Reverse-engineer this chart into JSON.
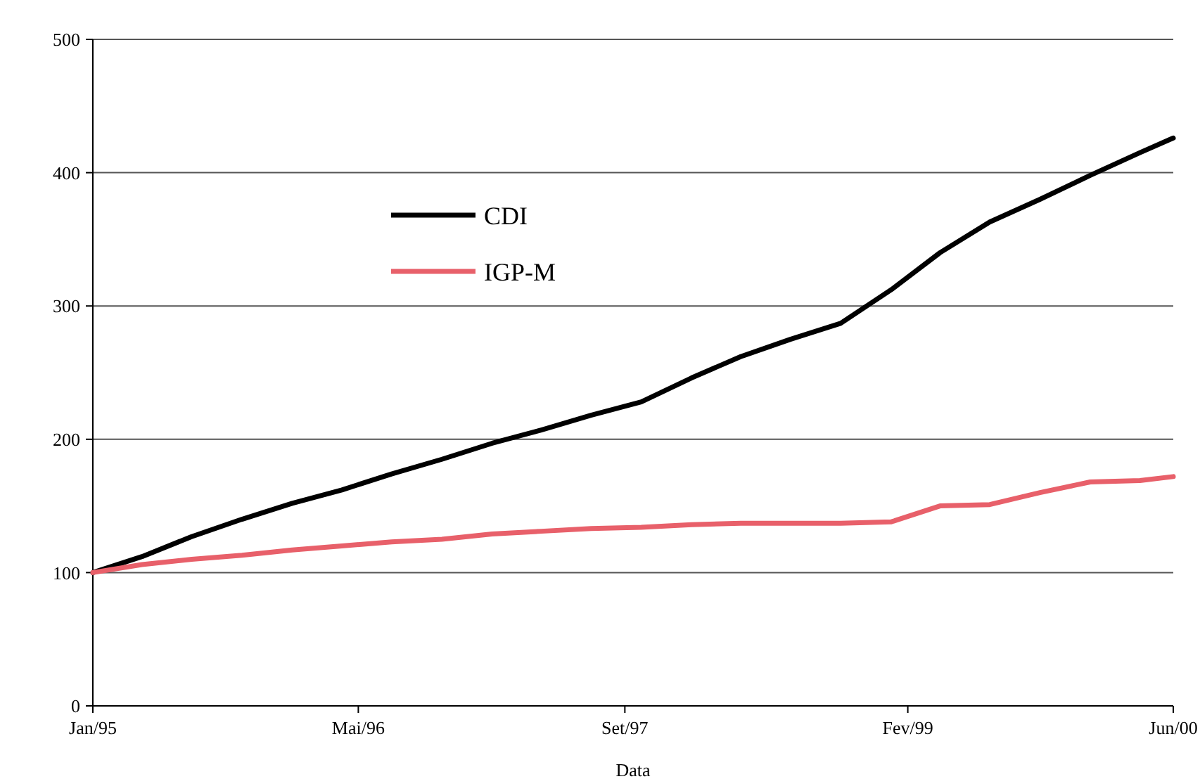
{
  "chart_data": {
    "type": "line",
    "xlabel": "Data",
    "x": [
      "1995-01",
      "1995-04",
      "1995-07",
      "1995-10",
      "1996-01",
      "1996-04",
      "1996-07",
      "1996-10",
      "1997-01",
      "1997-04",
      "1997-07",
      "1997-10",
      "1998-01",
      "1998-04",
      "1998-07",
      "1998-10",
      "1999-01",
      "1999-04",
      "1999-07",
      "1999-10",
      "2000-01",
      "2000-04",
      "2000-06"
    ],
    "series": [
      {
        "name": "CDI",
        "color": "#000000",
        "values": [
          100,
          112,
          127,
          140,
          152,
          162,
          174,
          185,
          197,
          207,
          218,
          228,
          246,
          262,
          275,
          287,
          312,
          340,
          363,
          380,
          398,
          415,
          426
        ]
      },
      {
        "name": "IGP-M",
        "color": "#e8606a",
        "values": [
          100,
          106,
          110,
          113,
          117,
          120,
          123,
          125,
          129,
          131,
          133,
          134,
          136,
          137,
          137,
          137,
          138,
          150,
          151,
          160,
          168,
          169,
          172
        ]
      }
    ],
    "xlim": [
      "1995-01",
      "2000-06"
    ],
    "xticks": [
      {
        "value": "1995-01",
        "label": "Jan/95"
      },
      {
        "value": "1996-05",
        "label": "Mai/96"
      },
      {
        "value": "1997-09",
        "label": "Set/97"
      },
      {
        "value": "1999-02",
        "label": "Fev/99"
      },
      {
        "value": "2000-06",
        "label": "Jun/00"
      }
    ],
    "ylim": [
      0,
      500
    ],
    "yticks": [
      0,
      100,
      200,
      300,
      400,
      500
    ],
    "grid": "y",
    "legend": "top left",
    "marker": "none",
    "line_style": "solid"
  }
}
